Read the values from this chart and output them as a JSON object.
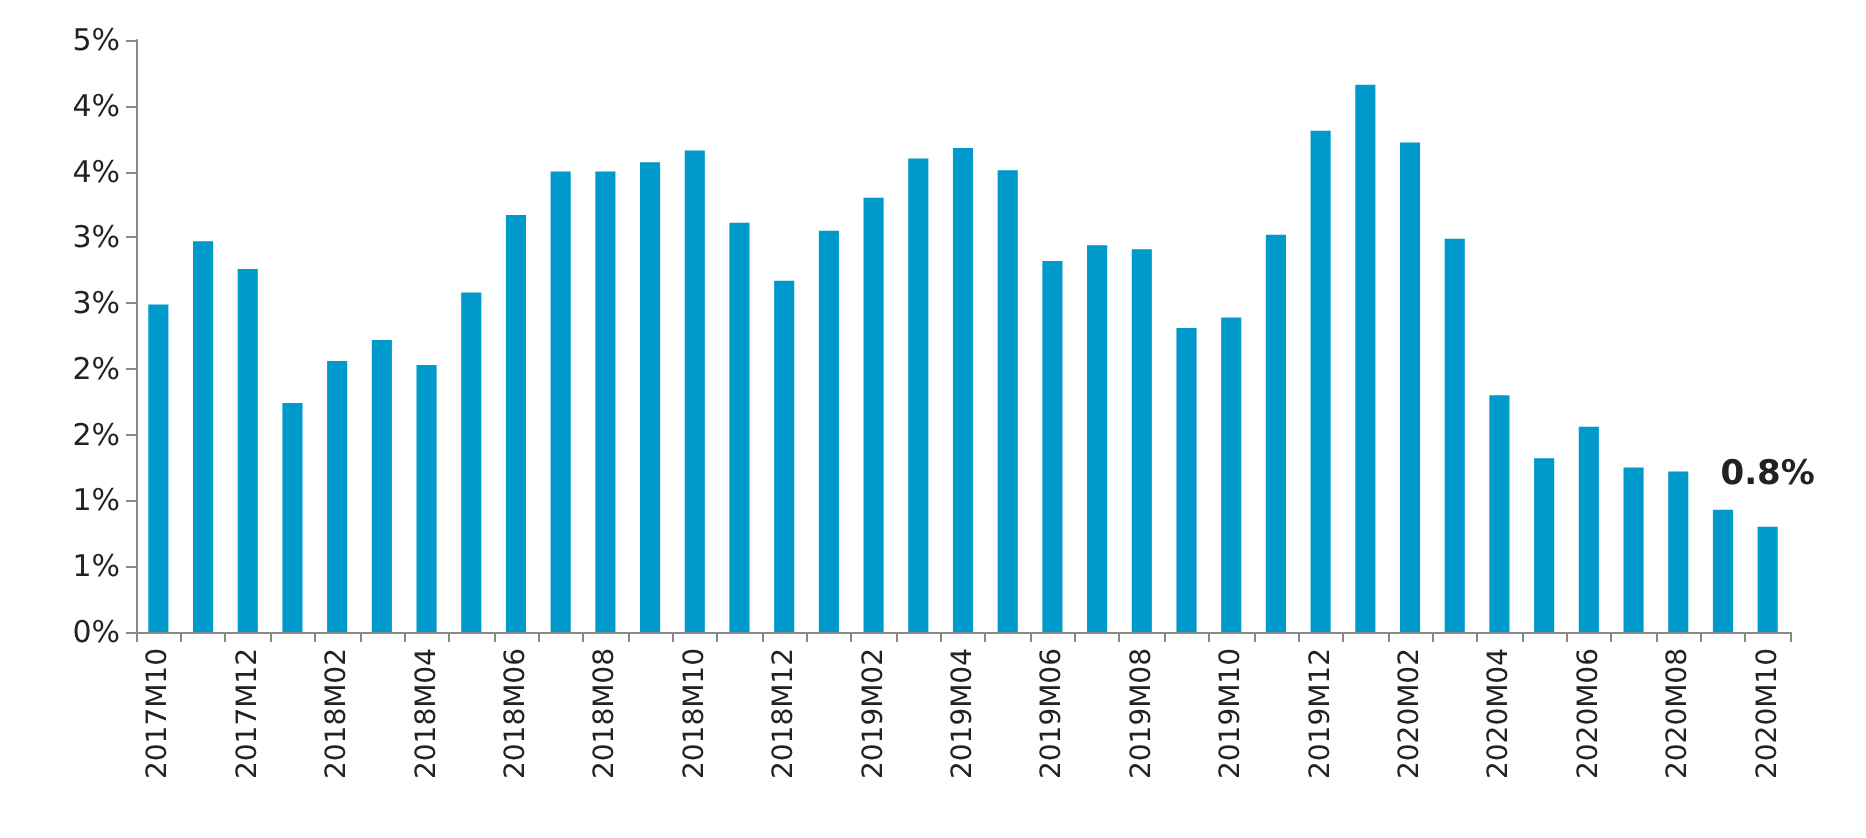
{
  "chart_data": {
    "type": "bar",
    "categories": [
      "2017M10",
      null,
      "2017M12",
      null,
      "2018M02",
      null,
      "2018M04",
      null,
      "2018M06",
      null,
      "2018M08",
      null,
      "2018M10",
      null,
      "2018M12",
      null,
      "2019M02",
      null,
      "2019M04",
      null,
      "2019M06",
      null,
      "2019M08",
      null,
      "2019M10",
      null,
      "2019M12",
      null,
      "2020M02",
      null,
      "2020M04",
      null,
      "2020M06",
      null,
      "2020M08",
      null,
      "2020M10"
    ],
    "values": [
      2.49,
      2.97,
      2.76,
      1.74,
      2.06,
      2.22,
      2.03,
      2.58,
      3.17,
      3.5,
      3.5,
      3.57,
      3.66,
      3.11,
      2.67,
      3.05,
      3.3,
      3.6,
      3.68,
      3.51,
      2.82,
      2.94,
      2.91,
      2.31,
      2.39,
      3.02,
      3.81,
      4.16,
      3.72,
      2.99,
      1.8,
      1.32,
      1.56,
      1.25,
      1.22,
      0.93,
      0.8
    ],
    "color": "#0099cc",
    "ylim": [
      0,
      4.5
    ],
    "yticks": [
      {
        "value": 0,
        "label": "0%"
      },
      {
        "value": 0.5,
        "label": "1%"
      },
      {
        "value": 1,
        "label": "1%"
      },
      {
        "value": 1.5,
        "label": "2%"
      },
      {
        "value": 2,
        "label": "2%"
      },
      {
        "value": 2.5,
        "label": "3%"
      },
      {
        "value": 3,
        "label": "3%"
      },
      {
        "value": 3.5,
        "label": "4%"
      },
      {
        "value": 4,
        "label": "4%"
      },
      {
        "value": 4.5,
        "label": "5%"
      }
    ],
    "grid": false,
    "annotations": [
      {
        "text": "0.8%",
        "x": "2020M10",
        "y": 0.8
      }
    ]
  }
}
